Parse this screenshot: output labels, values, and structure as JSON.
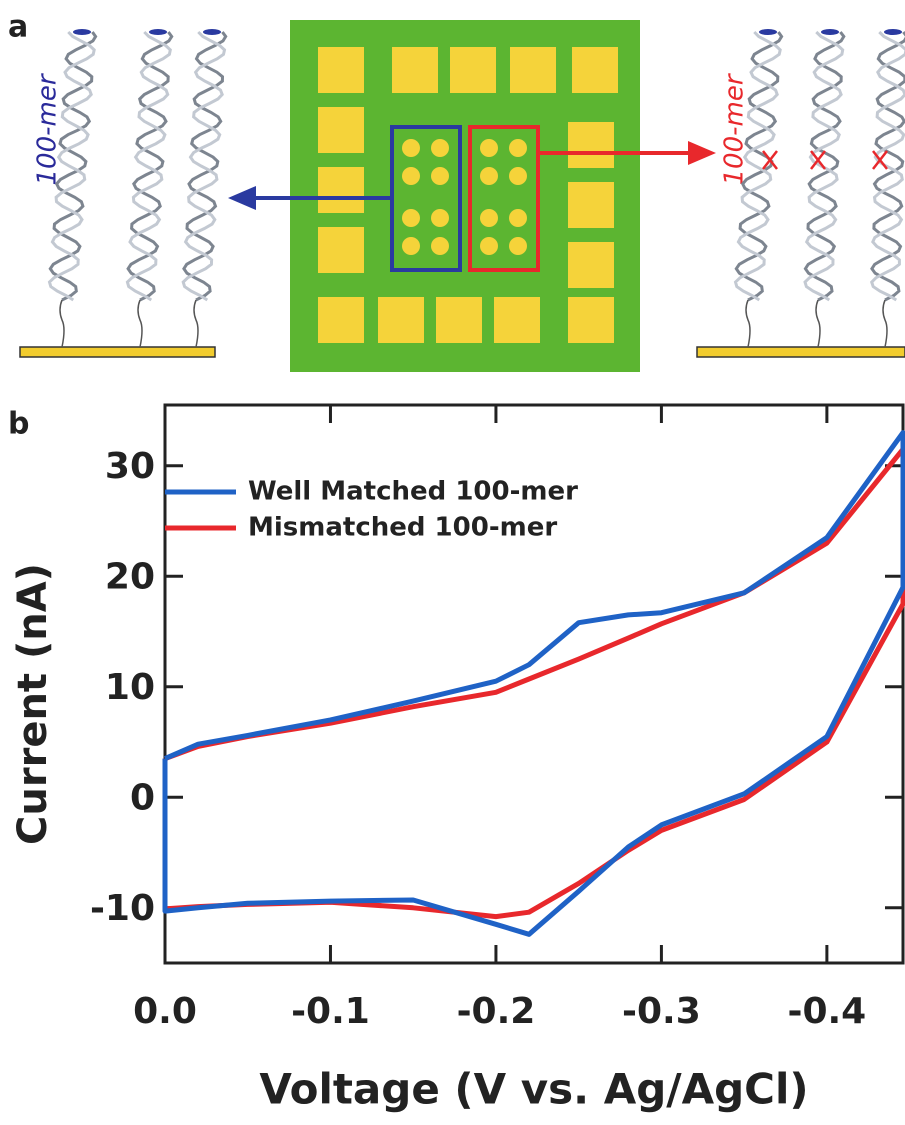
{
  "diagram": {
    "panel_label": "a",
    "left_label": "100-mer",
    "right_label": "100-mer"
  },
  "chart_data": {
    "type": "line",
    "panel_label": "b",
    "x_label": "Voltage (V vs. Ag/AgCl)",
    "y_label": "Current (nA)",
    "x": [
      0,
      -0.02,
      -0.05,
      -0.1,
      -0.15,
      -0.2,
      -0.22,
      -0.25,
      -0.28,
      -0.3,
      -0.35,
      -0.4,
      -0.446,
      -0.446,
      -0.4,
      -0.35,
      -0.3,
      -0.28,
      -0.25,
      -0.22,
      -0.2,
      -0.15,
      -0.1,
      -0.05,
      -0.02,
      0,
      0
    ],
    "series": [
      {
        "name": "Well Matched 100-mer",
        "color": "#1f62c6",
        "values": [
          3.5,
          4.8,
          5.6,
          7,
          8.7,
          10.5,
          12,
          15.8,
          16.5,
          16.7,
          18.5,
          23.5,
          33,
          19,
          5.5,
          0.3,
          -2.5,
          -4.5,
          -8.5,
          -12.4,
          -11.5,
          -9.3,
          -9.4,
          -9.6,
          -10,
          -10.3,
          3.5
        ]
      },
      {
        "name": "Mismatched 100-mer",
        "color": "#e8282c",
        "values": [
          3.5,
          4.6,
          5.5,
          6.7,
          8.2,
          9.5,
          10.7,
          12.5,
          14.4,
          15.7,
          18.5,
          23,
          31.5,
          17.5,
          5,
          -0.2,
          -3,
          -4.8,
          -7.8,
          -10.4,
          -10.8,
          -10,
          -9.5,
          -9.7,
          -9.9,
          -10.1,
          3.5
        ]
      }
    ],
    "xlim": [
      0,
      -0.446
    ],
    "ylim": [
      -15,
      35.5
    ],
    "xticks": [
      {
        "value": 0,
        "label": "0.0"
      },
      -0.1,
      -0.2,
      -0.3,
      -0.4
    ],
    "yticks": [
      30,
      20,
      10,
      0,
      -10
    ],
    "legend": "upper left"
  }
}
